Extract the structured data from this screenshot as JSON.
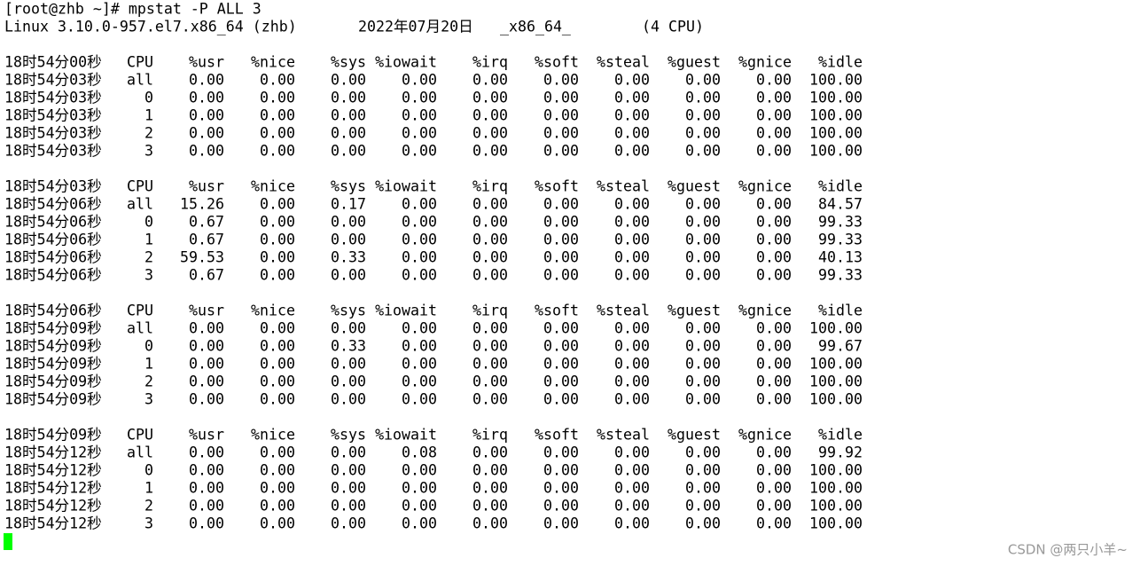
{
  "terminal": {
    "command": "[root@zhb ~]# mpstat -P ALL 3",
    "system": {
      "kernel": "Linux 3.10.0-957.el7.x86_64 (zhb)",
      "date": "2022年07月20日",
      "arch": "_x86_64_",
      "cpus": "(4 CPU)"
    },
    "blocks": [
      {
        "header": [
          "18时54分00秒",
          "CPU",
          "%usr",
          "%nice",
          "%sys",
          "%iowait",
          "%irq",
          "%soft",
          "%steal",
          "%guest",
          "%gnice",
          "%idle"
        ],
        "rows": [
          [
            "18时54分03秒",
            "all",
            "0.00",
            "0.00",
            "0.00",
            "0.00",
            "0.00",
            "0.00",
            "0.00",
            "0.00",
            "0.00",
            "100.00"
          ],
          [
            "18时54分03秒",
            "0",
            "0.00",
            "0.00",
            "0.00",
            "0.00",
            "0.00",
            "0.00",
            "0.00",
            "0.00",
            "0.00",
            "100.00"
          ],
          [
            "18时54分03秒",
            "1",
            "0.00",
            "0.00",
            "0.00",
            "0.00",
            "0.00",
            "0.00",
            "0.00",
            "0.00",
            "0.00",
            "100.00"
          ],
          [
            "18时54分03秒",
            "2",
            "0.00",
            "0.00",
            "0.00",
            "0.00",
            "0.00",
            "0.00",
            "0.00",
            "0.00",
            "0.00",
            "100.00"
          ],
          [
            "18时54分03秒",
            "3",
            "0.00",
            "0.00",
            "0.00",
            "0.00",
            "0.00",
            "0.00",
            "0.00",
            "0.00",
            "0.00",
            "100.00"
          ]
        ]
      },
      {
        "header": [
          "18时54分03秒",
          "CPU",
          "%usr",
          "%nice",
          "%sys",
          "%iowait",
          "%irq",
          "%soft",
          "%steal",
          "%guest",
          "%gnice",
          "%idle"
        ],
        "rows": [
          [
            "18时54分06秒",
            "all",
            "15.26",
            "0.00",
            "0.17",
            "0.00",
            "0.00",
            "0.00",
            "0.00",
            "0.00",
            "0.00",
            "84.57"
          ],
          [
            "18时54分06秒",
            "0",
            "0.67",
            "0.00",
            "0.00",
            "0.00",
            "0.00",
            "0.00",
            "0.00",
            "0.00",
            "0.00",
            "99.33"
          ],
          [
            "18时54分06秒",
            "1",
            "0.67",
            "0.00",
            "0.00",
            "0.00",
            "0.00",
            "0.00",
            "0.00",
            "0.00",
            "0.00",
            "99.33"
          ],
          [
            "18时54分06秒",
            "2",
            "59.53",
            "0.00",
            "0.33",
            "0.00",
            "0.00",
            "0.00",
            "0.00",
            "0.00",
            "0.00",
            "40.13"
          ],
          [
            "18时54分06秒",
            "3",
            "0.67",
            "0.00",
            "0.00",
            "0.00",
            "0.00",
            "0.00",
            "0.00",
            "0.00",
            "0.00",
            "99.33"
          ]
        ]
      },
      {
        "header": [
          "18时54分06秒",
          "CPU",
          "%usr",
          "%nice",
          "%sys",
          "%iowait",
          "%irq",
          "%soft",
          "%steal",
          "%guest",
          "%gnice",
          "%idle"
        ],
        "rows": [
          [
            "18时54分09秒",
            "all",
            "0.00",
            "0.00",
            "0.00",
            "0.00",
            "0.00",
            "0.00",
            "0.00",
            "0.00",
            "0.00",
            "100.00"
          ],
          [
            "18时54分09秒",
            "0",
            "0.00",
            "0.00",
            "0.33",
            "0.00",
            "0.00",
            "0.00",
            "0.00",
            "0.00",
            "0.00",
            "99.67"
          ],
          [
            "18时54分09秒",
            "1",
            "0.00",
            "0.00",
            "0.00",
            "0.00",
            "0.00",
            "0.00",
            "0.00",
            "0.00",
            "0.00",
            "100.00"
          ],
          [
            "18时54分09秒",
            "2",
            "0.00",
            "0.00",
            "0.00",
            "0.00",
            "0.00",
            "0.00",
            "0.00",
            "0.00",
            "0.00",
            "100.00"
          ],
          [
            "18时54分09秒",
            "3",
            "0.00",
            "0.00",
            "0.00",
            "0.00",
            "0.00",
            "0.00",
            "0.00",
            "0.00",
            "0.00",
            "100.00"
          ]
        ]
      },
      {
        "header": [
          "18时54分09秒",
          "CPU",
          "%usr",
          "%nice",
          "%sys",
          "%iowait",
          "%irq",
          "%soft",
          "%steal",
          "%guest",
          "%gnice",
          "%idle"
        ],
        "rows": [
          [
            "18时54分12秒",
            "all",
            "0.00",
            "0.00",
            "0.00",
            "0.08",
            "0.00",
            "0.00",
            "0.00",
            "0.00",
            "0.00",
            "99.92"
          ],
          [
            "18时54分12秒",
            "0",
            "0.00",
            "0.00",
            "0.00",
            "0.00",
            "0.00",
            "0.00",
            "0.00",
            "0.00",
            "0.00",
            "100.00"
          ],
          [
            "18时54分12秒",
            "1",
            "0.00",
            "0.00",
            "0.00",
            "0.00",
            "0.00",
            "0.00",
            "0.00",
            "0.00",
            "0.00",
            "100.00"
          ],
          [
            "18时54分12秒",
            "2",
            "0.00",
            "0.00",
            "0.00",
            "0.00",
            "0.00",
            "0.00",
            "0.00",
            "0.00",
            "0.00",
            "100.00"
          ],
          [
            "18时54分12秒",
            "3",
            "0.00",
            "0.00",
            "0.00",
            "0.00",
            "0.00",
            "0.00",
            "0.00",
            "0.00",
            "0.00",
            "100.00"
          ]
        ]
      }
    ]
  },
  "watermark": "CSDN @两只小羊~"
}
